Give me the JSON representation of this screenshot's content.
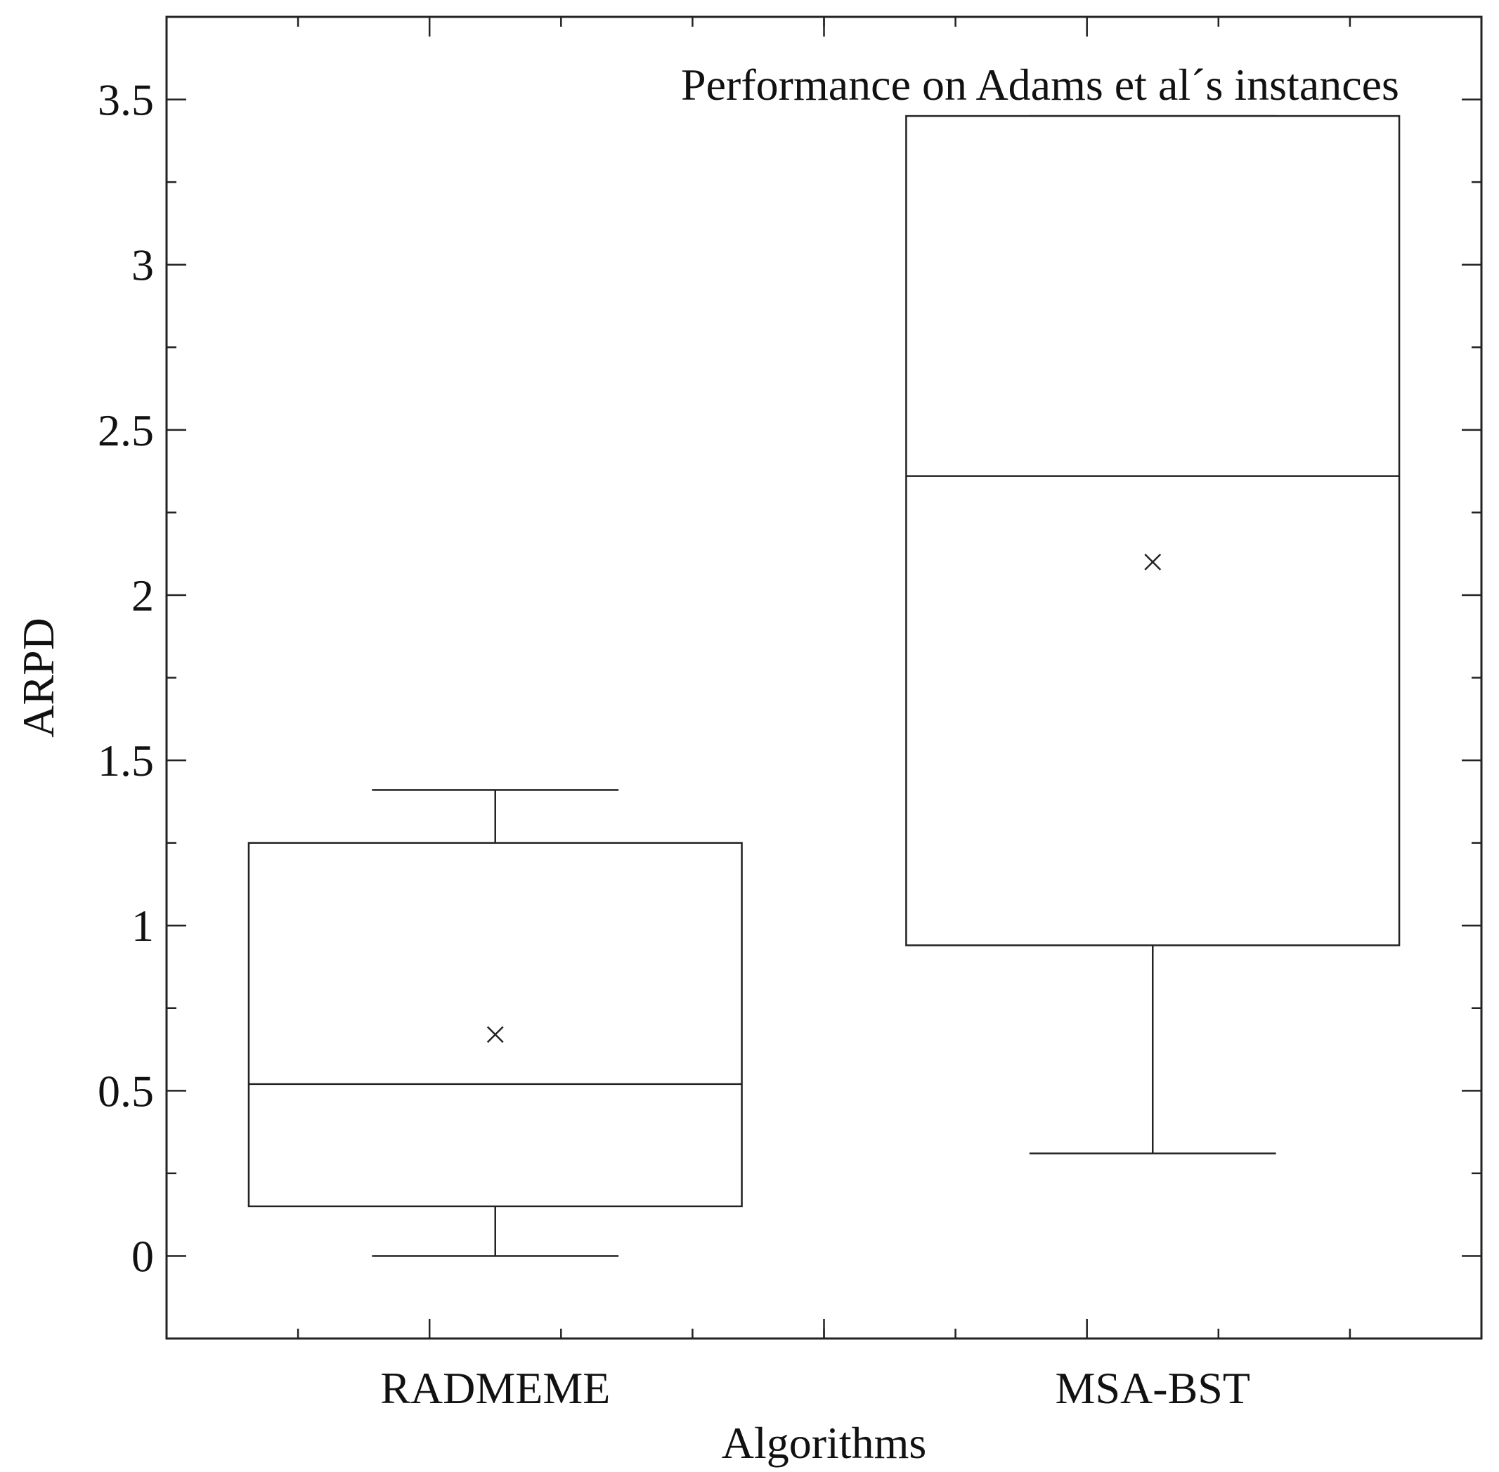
{
  "chart_data": {
    "type": "box",
    "title": "Performance on Adams et al´s instances",
    "xlabel": "Algorithms",
    "ylabel": "ARPD",
    "ylim": [
      -0.25,
      3.75
    ],
    "yticks": [
      0,
      0.5,
      1,
      1.5,
      2,
      2.5,
      3,
      3.5
    ],
    "ytick_labels": [
      "0",
      "0.5",
      "1",
      "1.5",
      "2",
      "2.5",
      "3",
      "3.5"
    ],
    "y_minor_step": 0.25,
    "x_minor_per_category": 5,
    "grid": false,
    "categories": [
      "RADMEME",
      "MSA-BST"
    ],
    "boxes": [
      {
        "name": "RADMEME",
        "whisker_low": 0.0,
        "q1": 0.15,
        "median": 0.52,
        "q3": 1.25,
        "whisker_high": 1.41,
        "mean": 0.67
      },
      {
        "name": "MSA-BST",
        "whisker_low": 0.31,
        "q1": 0.94,
        "median": 2.36,
        "q3": 3.45,
        "whisker_high": 3.45,
        "mean": 2.1
      }
    ]
  }
}
